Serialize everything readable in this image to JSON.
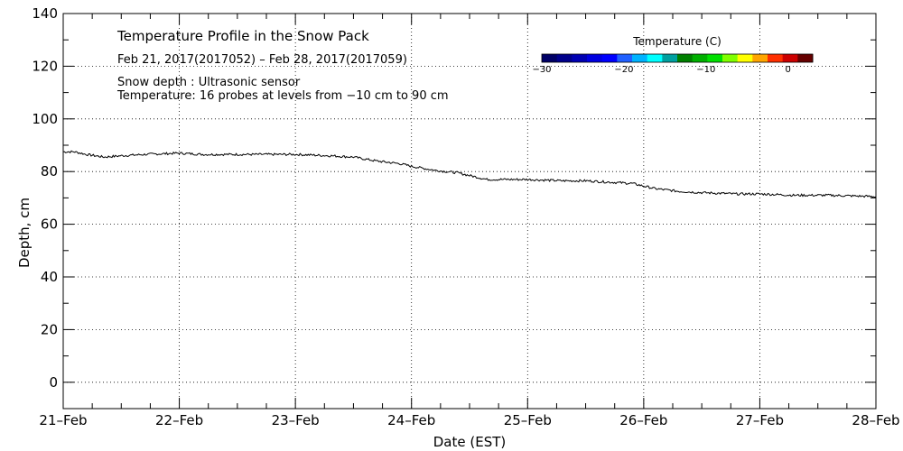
{
  "chart_data": {
    "type": "line",
    "title": "Temperature Profile in the Snow Pack",
    "date_range": "Feb 21, 2017(2017052) – Feb 28, 2017(2017059)",
    "note_depth": "Snow depth : Ultrasonic sensor",
    "note_temperature": "Temperature: 16 probes at levels from −10 cm to 90 cm",
    "xlabel": "Date (EST)",
    "ylabel": "Depth, cm",
    "x_categories": [
      "21–Feb",
      "22–Feb",
      "23–Feb",
      "24–Feb",
      "25–Feb",
      "26–Feb",
      "27–Feb",
      "28–Feb"
    ],
    "ylim": [
      -10,
      140
    ],
    "y_ticks": [
      0,
      20,
      40,
      60,
      80,
      100,
      120,
      140
    ],
    "series": [
      {
        "name": "Snow depth",
        "x_days": [
          0,
          0.1,
          0.2,
          0.35,
          0.5,
          0.7,
          1.0,
          1.2,
          1.4,
          1.5,
          1.7,
          2.0,
          2.3,
          2.5,
          2.7,
          2.9,
          3.0,
          3.2,
          3.4,
          3.55,
          3.65,
          4.0,
          4.3,
          4.5,
          4.7,
          4.9,
          5.0,
          5.1,
          5.3,
          5.5,
          5.8,
          6.0,
          6.3,
          6.6,
          7.0
        ],
        "y": [
          87.5,
          87.5,
          86.5,
          85.5,
          86,
          86.5,
          87,
          86.5,
          86.5,
          86.5,
          86.5,
          86.5,
          86,
          85.5,
          84,
          83,
          82,
          80.5,
          79.5,
          78,
          77,
          77,
          76.5,
          76.5,
          76,
          75.5,
          74.5,
          73.5,
          72.5,
          72,
          71.5,
          71.5,
          71,
          71,
          70.5
        ]
      }
    ],
    "colorbar": {
      "title": "Temperature (C)",
      "ticks": [
        "−30",
        "−20",
        "−10",
        "0"
      ],
      "tick_values": [
        -30,
        -20,
        -10,
        0
      ],
      "range": [
        -30,
        3
      ],
      "colors": [
        "#000066",
        "#00008b",
        "#0000b3",
        "#0000e0",
        "#0000ff",
        "#2060ff",
        "#00b3ff",
        "#00ffff",
        "#00a0a0",
        "#008000",
        "#00b000",
        "#00e000",
        "#80ff00",
        "#ffff00",
        "#ffa500",
        "#ff3000",
        "#cc0000",
        "#660000"
      ]
    }
  }
}
